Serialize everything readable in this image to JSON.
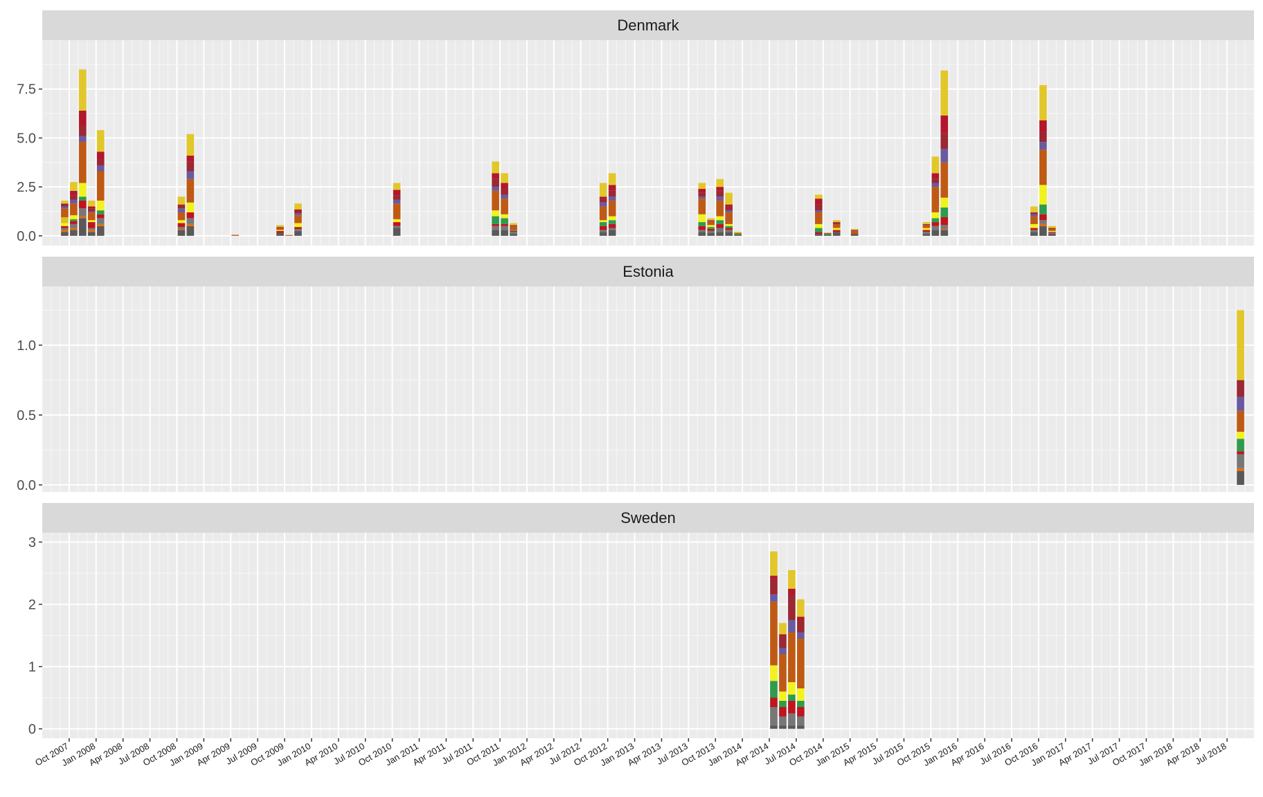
{
  "chart_data": {
    "type": "bar",
    "stacked": true,
    "faceted_by": [
      "Denmark",
      "Estonia",
      "Sweden"
    ],
    "x_axis": {
      "type": "date-month",
      "range": [
        "2007-07",
        "2018-10"
      ],
      "ticks": [
        "Oct 2007",
        "Jan 2008",
        "Apr 2008",
        "Jul 2008",
        "Oct 2008",
        "Jan 2009",
        "Apr 2009",
        "Jul 2009",
        "Oct 2009",
        "Jan 2010",
        "Apr 2010",
        "Jul 2010",
        "Oct 2010",
        "Jan 2011",
        "Apr 2011",
        "Jul 2011",
        "Oct 2011",
        "Jan 2012",
        "Apr 2012",
        "Jul 2012",
        "Oct 2012",
        "Jan 2013",
        "Apr 2013",
        "Jul 2013",
        "Oct 2013",
        "Jan 2014",
        "Apr 2014",
        "Jul 2014",
        "Oct 2014",
        "Jan 2015",
        "Apr 2015",
        "Jul 2015",
        "Oct 2015",
        "Jan 2016",
        "Apr 2016",
        "Jul 2016",
        "Oct 2016",
        "Jan 2017",
        "Apr 2017",
        "Jul 2017",
        "Oct 2017",
        "Jan 2018",
        "Apr 2018",
        "Jul 2018"
      ]
    },
    "grid": true,
    "legend": "none",
    "segment_colors": [
      "#595959",
      "#e46c0a",
      "#777777",
      "#c0141e",
      "#2e9b4e",
      "#f2f21e",
      "#d9c21e",
      "#bf5a14",
      "#6a5aa0",
      "#9b2832",
      "#b2172b",
      "#e2c72b"
    ],
    "facets": [
      {
        "name": "Denmark",
        "ylim": [
          -0.5,
          10
        ],
        "yticks": [
          0.0,
          2.5,
          5.0,
          7.5
        ],
        "ytick_labels": [
          "0.0",
          "2.5",
          "5.0",
          "7.5"
        ],
        "bars": [
          {
            "x": "2007-09",
            "segments": [
              0.2,
              0.1,
              0.1,
              0.1,
              0.0,
              0.15,
              0.3,
              0.45,
              0.1,
              0.15,
              0.0,
              0.15
            ]
          },
          {
            "x": "2007-10",
            "segments": [
              0.3,
              0.1,
              0.2,
              0.15,
              0.1,
              0.2,
              0.0,
              0.6,
              0.2,
              0.2,
              0.25,
              0.45
            ]
          },
          {
            "x": "2007-11",
            "segments": [
              0.9,
              0.1,
              0.4,
              0.4,
              0.2,
              0.7,
              0.0,
              2.1,
              0.3,
              0.5,
              0.8,
              2.1
            ]
          },
          {
            "x": "2007-12",
            "segments": [
              0.2,
              0.1,
              0.1,
              0.3,
              0.0,
              0.1,
              0.0,
              0.4,
              0.05,
              0.15,
              0.1,
              0.3
            ]
          },
          {
            "x": "2008-01",
            "segments": [
              0.5,
              0.1,
              0.3,
              0.2,
              0.2,
              0.5,
              0.0,
              1.5,
              0.3,
              0.3,
              0.4,
              1.1
            ]
          },
          {
            "x": "2008-10",
            "segments": [
              0.3,
              0.05,
              0.1,
              0.2,
              0.0,
              0.15,
              0.0,
              0.4,
              0.2,
              0.2,
              0.0,
              0.4
            ]
          },
          {
            "x": "2008-11",
            "segments": [
              0.5,
              0.1,
              0.3,
              0.3,
              0.0,
              0.5,
              0.0,
              1.2,
              0.4,
              0.5,
              0.3,
              1.1
            ]
          },
          {
            "x": "2009-04",
            "segments": [
              0.0,
              0.0,
              0.0,
              0.0,
              0.0,
              0.0,
              0.0,
              0.05,
              0.0,
              0.0,
              0.0,
              0.0
            ]
          },
          {
            "x": "2009-09",
            "segments": [
              0.15,
              0.0,
              0.0,
              0.1,
              0.0,
              0.05,
              0.0,
              0.1,
              0.0,
              0.05,
              0.0,
              0.1
            ]
          },
          {
            "x": "2009-10",
            "segments": [
              0.0,
              0.0,
              0.0,
              0.0,
              0.0,
              0.0,
              0.0,
              0.04,
              0.0,
              0.0,
              0.0,
              0.0
            ]
          },
          {
            "x": "2009-11",
            "segments": [
              0.25,
              0.0,
              0.1,
              0.1,
              0.0,
              0.2,
              0.0,
              0.4,
              0.1,
              0.1,
              0.1,
              0.3
            ]
          },
          {
            "x": "2010-10",
            "segments": [
              0.4,
              0.0,
              0.1,
              0.2,
              0.0,
              0.15,
              0.0,
              0.8,
              0.2,
              0.2,
              0.3,
              0.35
            ]
          },
          {
            "x": "2011-09",
            "segments": [
              0.3,
              0.0,
              0.2,
              0.1,
              0.4,
              0.3,
              0.0,
              1.0,
              0.2,
              0.4,
              0.3,
              0.6
            ]
          },
          {
            "x": "2011-10",
            "segments": [
              0.3,
              0.0,
              0.2,
              0.1,
              0.3,
              0.2,
              0.0,
              0.8,
              0.2,
              0.3,
              0.3,
              0.5
            ]
          },
          {
            "x": "2011-11",
            "segments": [
              0.1,
              0.0,
              0.1,
              0.05,
              0.05,
              0.0,
              0.0,
              0.2,
              0.0,
              0.05,
              0.0,
              0.1
            ]
          },
          {
            "x": "2012-09",
            "segments": [
              0.2,
              0.0,
              0.1,
              0.2,
              0.2,
              0.1,
              0.0,
              0.7,
              0.2,
              0.2,
              0.1,
              0.7
            ]
          },
          {
            "x": "2012-10",
            "segments": [
              0.3,
              0.0,
              0.1,
              0.2,
              0.2,
              0.2,
              0.0,
              0.8,
              0.2,
              0.3,
              0.3,
              0.6
            ]
          },
          {
            "x": "2013-08",
            "segments": [
              0.2,
              0.0,
              0.1,
              0.2,
              0.2,
              0.4,
              0.0,
              0.8,
              0.1,
              0.2,
              0.2,
              0.3
            ]
          },
          {
            "x": "2013-09",
            "segments": [
              0.15,
              0.0,
              0.1,
              0.1,
              0.1,
              0.1,
              0.0,
              0.2,
              0.0,
              0.05,
              0.0,
              0.1
            ]
          },
          {
            "x": "2013-10",
            "segments": [
              0.2,
              0.0,
              0.2,
              0.2,
              0.2,
              0.2,
              0.0,
              0.8,
              0.2,
              0.3,
              0.2,
              0.4
            ]
          },
          {
            "x": "2013-11",
            "segments": [
              0.2,
              0.0,
              0.1,
              0.1,
              0.1,
              0.1,
              0.0,
              0.6,
              0.1,
              0.2,
              0.1,
              0.6
            ]
          },
          {
            "x": "2013-12",
            "segments": [
              0.05,
              0.0,
              0.0,
              0.0,
              0.05,
              0.0,
              0.0,
              0.05,
              0.0,
              0.0,
              0.0,
              0.05
            ]
          },
          {
            "x": "2014-09",
            "segments": [
              0.1,
              0.0,
              0.0,
              0.1,
              0.2,
              0.2,
              0.0,
              0.6,
              0.1,
              0.3,
              0.3,
              0.2
            ]
          },
          {
            "x": "2014-10",
            "segments": [
              0.05,
              0.0,
              0.0,
              0.0,
              0.05,
              0.0,
              0.0,
              0.05,
              0.0,
              0.0,
              0.0,
              0.0
            ]
          },
          {
            "x": "2014-11",
            "segments": [
              0.2,
              0.0,
              0.0,
              0.1,
              0.0,
              0.1,
              0.0,
              0.2,
              0.0,
              0.1,
              0.0,
              0.1
            ]
          },
          {
            "x": "2015-01",
            "segments": [
              0.1,
              0.0,
              0.0,
              0.0,
              0.0,
              0.0,
              0.0,
              0.15,
              0.0,
              0.05,
              0.0,
              0.05
            ]
          },
          {
            "x": "2015-09",
            "segments": [
              0.1,
              0.0,
              0.1,
              0.1,
              0.0,
              0.1,
              0.0,
              0.15,
              0.0,
              0.05,
              0.0,
              0.1
            ]
          },
          {
            "x": "2015-10",
            "segments": [
              0.3,
              0.0,
              0.2,
              0.2,
              0.2,
              0.3,
              0.0,
              1.3,
              0.2,
              0.2,
              0.3,
              0.85
            ]
          },
          {
            "x": "2015-11",
            "segments": [
              0.3,
              0.05,
              0.2,
              0.4,
              0.5,
              0.5,
              0.0,
              1.8,
              0.7,
              0.8,
              0.9,
              2.3
            ]
          },
          {
            "x": "2016-09",
            "segments": [
              0.2,
              0.0,
              0.1,
              0.1,
              0.0,
              0.2,
              0.0,
              0.4,
              0.1,
              0.1,
              0.0,
              0.3
            ]
          },
          {
            "x": "2016-10",
            "segments": [
              0.5,
              0.1,
              0.2,
              0.3,
              0.5,
              1.0,
              0.0,
              1.8,
              0.4,
              0.5,
              0.6,
              1.8
            ]
          },
          {
            "x": "2016-11",
            "segments": [
              0.1,
              0.0,
              0.05,
              0.05,
              0.0,
              0.05,
              0.0,
              0.1,
              0.0,
              0.05,
              0.0,
              0.1
            ]
          }
        ]
      },
      {
        "name": "Estonia",
        "ylim": [
          -0.05,
          1.42
        ],
        "yticks": [
          0.0,
          0.5,
          1.0
        ],
        "ytick_labels": [
          "0.0",
          "0.5",
          "1.0"
        ],
        "bars": [
          {
            "x": "2018-08",
            "segments": [
              0.1,
              0.02,
              0.1,
              0.02,
              0.09,
              0.05,
              0.0,
              0.15,
              0.1,
              0.12,
              0.0,
              0.5
            ]
          }
        ]
      },
      {
        "name": "Sweden",
        "ylim": [
          -0.15,
          3.15
        ],
        "yticks": [
          0,
          1,
          2,
          3
        ],
        "ytick_labels": [
          "0",
          "1",
          "2",
          "3"
        ],
        "bars": [
          {
            "x": "2014-04",
            "segments": [
              0.05,
              0.0,
              0.3,
              0.15,
              0.27,
              0.25,
              0.0,
              1.02,
              0.12,
              0.25,
              0.05,
              0.39
            ]
          },
          {
            "x": "2014-05",
            "segments": [
              0.05,
              0.0,
              0.15,
              0.15,
              0.1,
              0.15,
              0.0,
              0.6,
              0.1,
              0.2,
              0.02,
              0.18
            ]
          },
          {
            "x": "2014-06",
            "segments": [
              0.05,
              0.0,
              0.2,
              0.2,
              0.1,
              0.2,
              0.0,
              0.8,
              0.2,
              0.4,
              0.1,
              0.3
            ]
          },
          {
            "x": "2014-07",
            "segments": [
              0.05,
              0.0,
              0.15,
              0.15,
              0.1,
              0.2,
              0.0,
              0.8,
              0.1,
              0.2,
              0.05,
              0.28
            ]
          }
        ]
      }
    ]
  }
}
